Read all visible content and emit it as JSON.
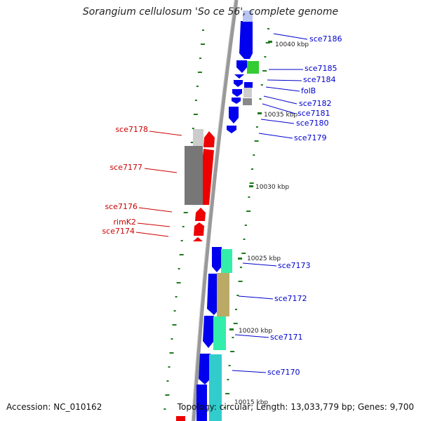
{
  "title": "Sorangium cellulosum 'So ce 56', complete genome",
  "footer": {
    "accession": "Accession: NC_010162",
    "topology": "Topology: circular; Length: 13,033,779 bp; Genes: 9,700"
  },
  "colors": {
    "plus_strand_gene": "#0000ee",
    "minus_strand_gene": "#ee0000",
    "plus_label": "#0000cc",
    "minus_label": "#cc0000",
    "gc_skew_dots": "#1f7a1f",
    "backbone": "#888888",
    "hit_green": "#33cc33",
    "hit_grey": "#888888",
    "hit_light_grey": "#cccccc",
    "hit_mint": "#33eeaa",
    "hit_olive": "#bbaa66",
    "hit_cyan": "#33cccc"
  },
  "scale_labels": [
    "10040 kbp",
    "10035 kbp",
    "10030 kbp",
    "10025 kbp",
    "10020 kbp",
    "10015 kbp"
  ],
  "plus_genes": [
    "sce7186",
    "sce7185",
    "sce7184",
    "folB",
    "sce7182",
    "sce7181",
    "sce7180",
    "sce7179",
    "sce7173",
    "sce7172",
    "sce7171",
    "sce7170"
  ],
  "minus_genes": [
    "sce7178",
    "sce7177",
    "sce7176",
    "rimK2",
    "sce7174"
  ]
}
